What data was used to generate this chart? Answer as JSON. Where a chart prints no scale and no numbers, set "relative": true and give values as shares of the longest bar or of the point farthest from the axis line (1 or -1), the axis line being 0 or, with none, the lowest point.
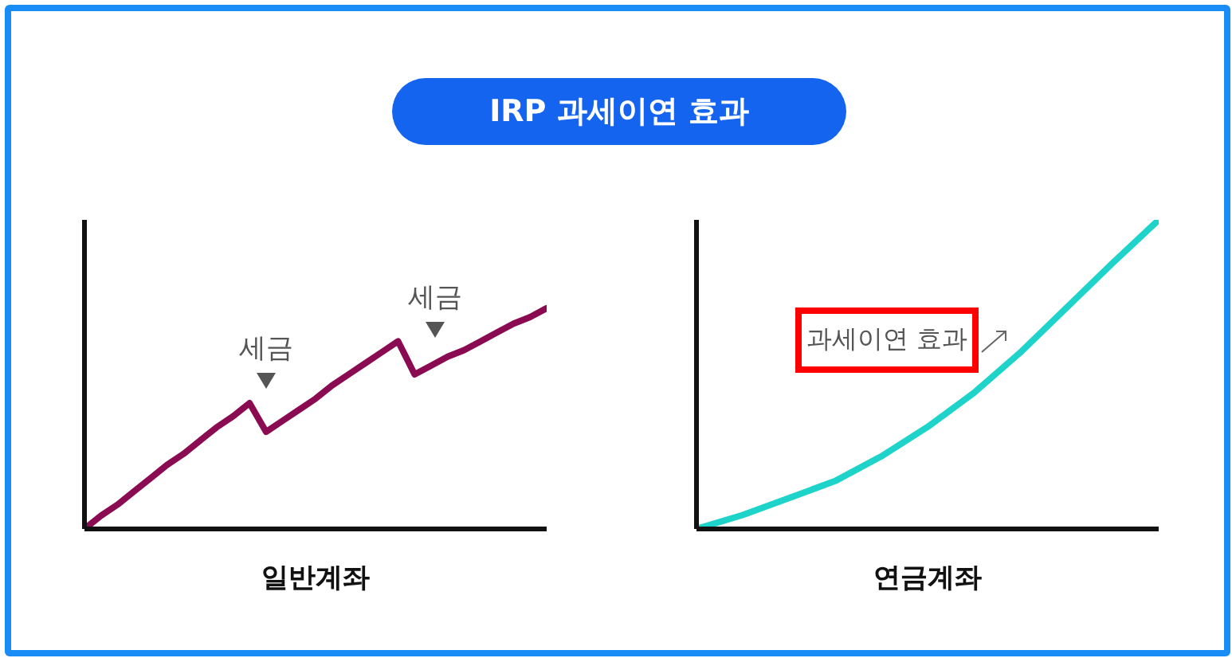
{
  "chart_data": [
    {
      "type": "line",
      "title": "IRP 과세이연 효과",
      "xlabel": "일반계좌",
      "relative": true,
      "grid": false,
      "legend": false,
      "marker": "none",
      "line_style": "solid",
      "categories": [
        null,
        null,
        null,
        null,
        null,
        null,
        null,
        null,
        null,
        null,
        null,
        null,
        null,
        null,
        null,
        null,
        null,
        null,
        null,
        null,
        null,
        null,
        null,
        null,
        null,
        null,
        null,
        null,
        null
      ],
      "series": [
        {
          "color": "#8a0b52",
          "values": [
            0,
            0.06,
            0.11,
            0.17,
            0.23,
            0.29,
            0.34,
            0.4,
            0.46,
            0.51,
            0.57,
            0.44,
            0.49,
            0.54,
            0.59,
            0.65,
            0.7,
            0.75,
            0.8,
            0.85,
            0.7,
            0.74,
            0.78,
            0.81,
            0.85,
            0.89,
            0.93,
            0.96,
            1
          ]
        }
      ],
      "annotations": [
        "세금",
        "세금"
      ]
    },
    {
      "type": "line",
      "xlabel": "연금계좌",
      "relative": true,
      "grid": false,
      "legend": false,
      "marker": "none",
      "line_style": "solid",
      "categories": [
        null,
        null,
        null,
        null,
        null,
        null,
        null,
        null,
        null,
        null,
        null
      ],
      "series": [
        {
          "color": "#1ed3c9",
          "values": [
            0,
            0.045,
            0.1,
            0.155,
            0.235,
            0.33,
            0.44,
            0.57,
            0.715,
            0.86,
            1
          ]
        }
      ],
      "annotations": [
        "과세이연 효과"
      ]
    }
  ]
}
